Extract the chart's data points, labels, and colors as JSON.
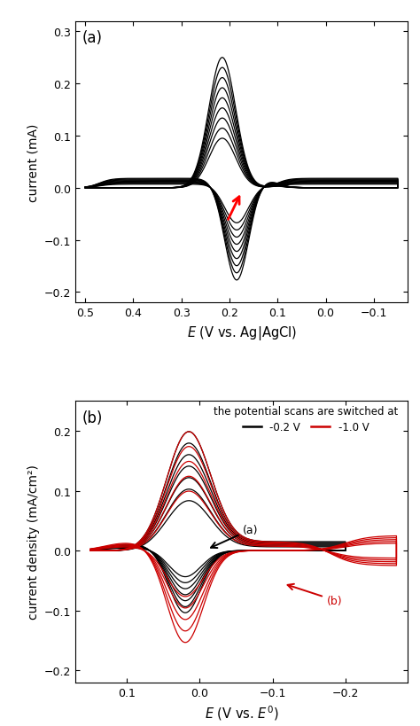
{
  "panel_a": {
    "xlabel": "E (V vs. Ag|AgCl)",
    "ylabel": "current (mA)",
    "xlim": [
      0.52,
      -0.17
    ],
    "ylim": [
      -0.22,
      0.32
    ],
    "yticks": [
      -0.2,
      -0.1,
      0.0,
      0.1,
      0.2,
      0.3
    ],
    "xticks": [
      0.5,
      0.4,
      0.3,
      0.2,
      0.1,
      0.0,
      -0.1
    ],
    "n_curves": 9,
    "label": "(a)"
  },
  "panel_b": {
    "xlabel": "E (V vs. E⁰)",
    "ylabel": "current density (mA/cm²)",
    "xlim": [
      0.17,
      -0.285
    ],
    "ylim": [
      -0.22,
      0.25
    ],
    "yticks": [
      -0.2,
      -0.1,
      0.0,
      0.1,
      0.2
    ],
    "xticks": [
      0.1,
      0.0,
      -0.1,
      -0.2
    ],
    "n_black": 7,
    "n_red": 5,
    "legend_title": "the potential scans are switched at",
    "legend_black": "-0.2 V",
    "legend_red": "-1.0 V",
    "black_color": "#000000",
    "red_color": "#cc0000",
    "label": "(b)"
  }
}
